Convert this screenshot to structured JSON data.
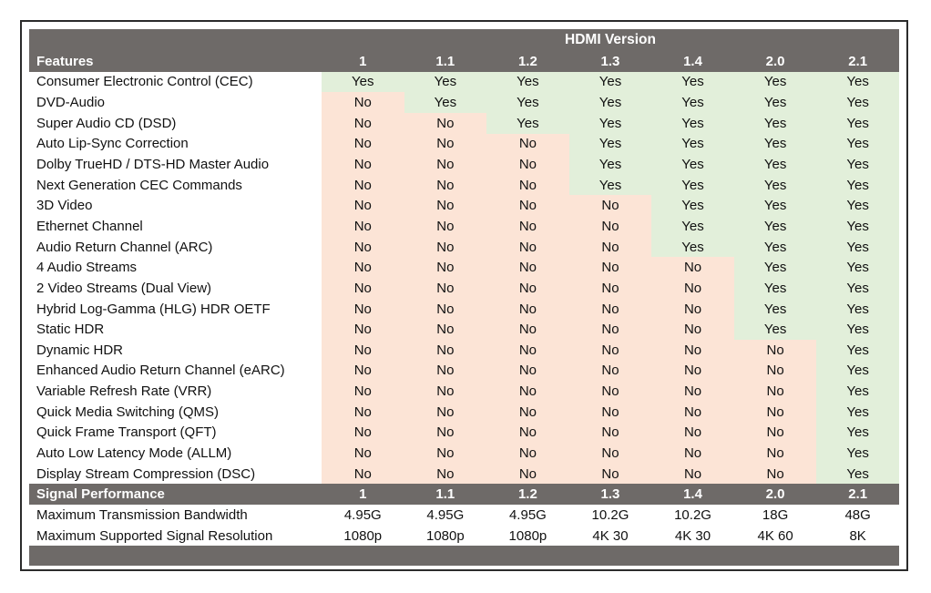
{
  "table": {
    "group_header": "HDMI Version",
    "features_label": "Features",
    "versions": [
      "1",
      "1.1",
      "1.2",
      "1.3",
      "1.4",
      "2.0",
      "2.1"
    ],
    "feature_rows": [
      {
        "name": "Consumer Electronic Control (CEC)",
        "values": [
          "Yes",
          "Yes",
          "Yes",
          "Yes",
          "Yes",
          "Yes",
          "Yes"
        ]
      },
      {
        "name": "DVD-Audio",
        "values": [
          "No",
          "Yes",
          "Yes",
          "Yes",
          "Yes",
          "Yes",
          "Yes"
        ]
      },
      {
        "name": "Super Audio CD (DSD)",
        "values": [
          "No",
          "No",
          "Yes",
          "Yes",
          "Yes",
          "Yes",
          "Yes"
        ]
      },
      {
        "name": "Auto Lip-Sync Correction",
        "values": [
          "No",
          "No",
          "No",
          "Yes",
          "Yes",
          "Yes",
          "Yes"
        ]
      },
      {
        "name": "Dolby TrueHD / DTS-HD Master Audio",
        "values": [
          "No",
          "No",
          "No",
          "Yes",
          "Yes",
          "Yes",
          "Yes"
        ]
      },
      {
        "name": "Next Generation CEC Commands",
        "values": [
          "No",
          "No",
          "No",
          "Yes",
          "Yes",
          "Yes",
          "Yes"
        ]
      },
      {
        "name": "3D Video",
        "values": [
          "No",
          "No",
          "No",
          "No",
          "Yes",
          "Yes",
          "Yes"
        ]
      },
      {
        "name": "Ethernet Channel",
        "values": [
          "No",
          "No",
          "No",
          "No",
          "Yes",
          "Yes",
          "Yes"
        ]
      },
      {
        "name": "Audio Return Channel (ARC)",
        "values": [
          "No",
          "No",
          "No",
          "No",
          "Yes",
          "Yes",
          "Yes"
        ]
      },
      {
        "name": "4 Audio Streams",
        "values": [
          "No",
          "No",
          "No",
          "No",
          "No",
          "Yes",
          "Yes"
        ]
      },
      {
        "name": "2 Video Streams (Dual View)",
        "values": [
          "No",
          "No",
          "No",
          "No",
          "No",
          "Yes",
          "Yes"
        ]
      },
      {
        "name": "Hybrid Log-Gamma (HLG) HDR OETF",
        "values": [
          "No",
          "No",
          "No",
          "No",
          "No",
          "Yes",
          "Yes"
        ]
      },
      {
        "name": "Static HDR",
        "values": [
          "No",
          "No",
          "No",
          "No",
          "No",
          "Yes",
          "Yes"
        ]
      },
      {
        "name": "Dynamic HDR",
        "values": [
          "No",
          "No",
          "No",
          "No",
          "No",
          "No",
          "Yes"
        ]
      },
      {
        "name": "Enhanced Audio Return Channel (eARC)",
        "values": [
          "No",
          "No",
          "No",
          "No",
          "No",
          "No",
          "Yes"
        ]
      },
      {
        "name": "Variable Refresh Rate (VRR)",
        "values": [
          "No",
          "No",
          "No",
          "No",
          "No",
          "No",
          "Yes"
        ]
      },
      {
        "name": "Quick Media Switching (QMS)",
        "values": [
          "No",
          "No",
          "No",
          "No",
          "No",
          "No",
          "Yes"
        ]
      },
      {
        "name": "Quick Frame Transport (QFT)",
        "values": [
          "No",
          "No",
          "No",
          "No",
          "No",
          "No",
          "Yes"
        ]
      },
      {
        "name": "Auto Low Latency Mode (ALLM)",
        "values": [
          "No",
          "No",
          "No",
          "No",
          "No",
          "No",
          "Yes"
        ]
      },
      {
        "name": "Display Stream Compression (DSC)",
        "values": [
          "No",
          "No",
          "No",
          "No",
          "No",
          "No",
          "Yes"
        ]
      }
    ],
    "signal_label": "Signal Performance",
    "signal_rows": [
      {
        "name": "Maximum Transmission Bandwidth",
        "values": [
          "4.95G",
          "4.95G",
          "4.95G",
          "10.2G",
          "10.2G",
          "18G",
          "48G"
        ]
      },
      {
        "name": "Maximum Supported Signal Resolution",
        "values": [
          "1080p",
          "1080p",
          "1080p",
          "4K 30",
          "4K 30",
          "4K 60",
          "8K"
        ]
      }
    ]
  },
  "colors": {
    "header_bg": "#6e6a68",
    "yes_bg": "#e2efda",
    "no_bg": "#fce4d6"
  }
}
